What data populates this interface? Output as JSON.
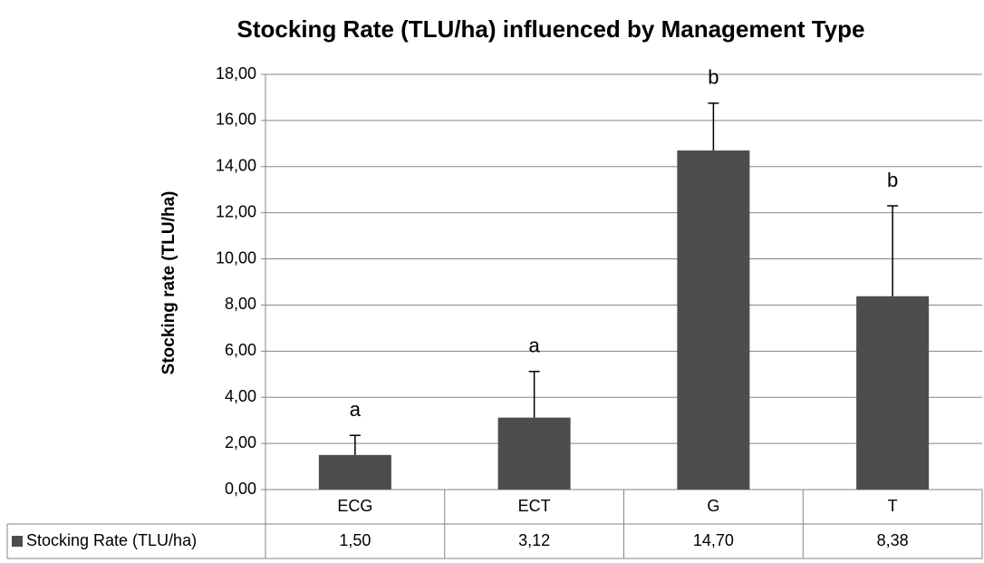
{
  "chart_data": {
    "type": "bar",
    "title": "Stocking Rate (TLU/ha) influenced by Management Type",
    "y_label": "Stocking rate (TLU/ha)",
    "categories": [
      "ECG",
      "ECT",
      "G",
      "T"
    ],
    "series": [
      {
        "name": "Stocking Rate (TLU/ha)",
        "color": "#4d4d4d",
        "values": [
          1.5,
          3.12,
          14.7,
          8.38
        ],
        "value_labels": [
          "1,50",
          "3,12",
          "14,70",
          "8,38"
        ],
        "errors": [
          0.85,
          2.0,
          2.05,
          3.92
        ]
      }
    ],
    "annotations": [
      "a",
      "a",
      "b",
      "b"
    ],
    "ylim": [
      0,
      18
    ],
    "yticks": [
      {
        "value": 0,
        "label": "0,00"
      },
      {
        "value": 2,
        "label": "2,00"
      },
      {
        "value": 4,
        "label": "4,00"
      },
      {
        "value": 6,
        "label": "6,00"
      },
      {
        "value": 8,
        "label": "8,00"
      },
      {
        "value": 10,
        "label": "10,00"
      },
      {
        "value": 12,
        "label": "12,00"
      },
      {
        "value": 14,
        "label": "14,00"
      },
      {
        "value": 16,
        "label": "16,00"
      },
      {
        "value": 18,
        "label": "18,00"
      }
    ],
    "grid": true
  }
}
